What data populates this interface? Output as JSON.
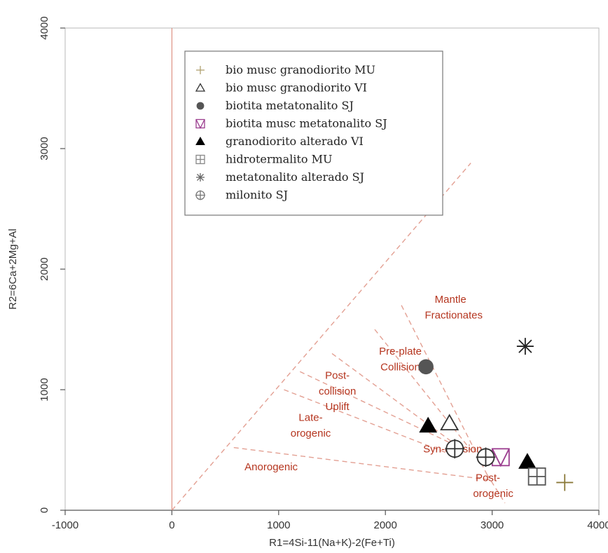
{
  "chart_data": {
    "type": "scatter",
    "title": "",
    "xlabel": "R1=4Si-11(Na+K)-2(Fe+Ti)",
    "ylabel": "R2=6Ca+2Mg+Al",
    "xlim": [
      -1000,
      4000
    ],
    "ylim": [
      0,
      4000
    ],
    "x_ticks": [
      "-1000",
      "0",
      "1000",
      "2000",
      "3000",
      "4000"
    ],
    "y_ticks": [
      "0",
      "1000",
      "2000",
      "3000",
      "4000"
    ],
    "legend_position": "top-left",
    "series": [
      {
        "name": "bio musc granodiorito MU",
        "marker": "plus",
        "color": "#8b7a3a",
        "points": [
          [
            3680,
            230
          ]
        ]
      },
      {
        "name": "bio musc granodiorito VI",
        "marker": "triangle-open",
        "color": "#333333",
        "points": [
          [
            2600,
            720
          ]
        ]
      },
      {
        "name": "biotita metatonalito SJ",
        "marker": "circle-filled",
        "color": "#555555",
        "points": [
          [
            2380,
            1190
          ]
        ]
      },
      {
        "name": "biotita musc metatonalito SJ",
        "marker": "square-v",
        "color": "#9b3d8f",
        "points": [
          [
            3080,
            440
          ]
        ]
      },
      {
        "name": "granodiorito alterado VI",
        "marker": "triangle-filled",
        "color": "#000000",
        "points": [
          [
            2400,
            700
          ],
          [
            3330,
            400
          ]
        ]
      },
      {
        "name": "hidrotermalito MU",
        "marker": "square-plus",
        "color": "#555555",
        "points": [
          [
            3420,
            280
          ]
        ]
      },
      {
        "name": "metatonalito alterado SJ",
        "marker": "asterisk",
        "color": "#222222",
        "points": [
          [
            3310,
            1360
          ]
        ]
      },
      {
        "name": "milonito SJ",
        "marker": "circle-plus",
        "color": "#333333",
        "points": [
          [
            2940,
            440
          ],
          [
            2650,
            510
          ]
        ]
      }
    ],
    "field_lines": [
      [
        [
          0,
          0
        ],
        [
          2800,
          2880
        ]
      ],
      [
        [
          0,
          0
        ],
        [
          1400,
          1440
        ]
      ],
      [
        [
          1000,
          1000
        ],
        [
          2000,
          1000
        ]
      ]
    ],
    "field_labels": [
      {
        "text": "Mantle",
        "x": 2610,
        "y": 1720
      },
      {
        "text": "Fractionates",
        "x": 2640,
        "y": 1590
      },
      {
        "text": "Pre-plate",
        "x": 2140,
        "y": 1290
      },
      {
        "text": "Collision",
        "x": 2140,
        "y": 1160
      },
      {
        "text": "Post-",
        "x": 1550,
        "y": 1090
      },
      {
        "text": "collision",
        "x": 1550,
        "y": 960
      },
      {
        "text": "Uplift",
        "x": 1550,
        "y": 830
      },
      {
        "text": "Late-",
        "x": 1300,
        "y": 740
      },
      {
        "text": "orogenic",
        "x": 1300,
        "y": 610
      },
      {
        "text": "Syn-collision",
        "x": 2630,
        "y": 480
      },
      {
        "text": "Anorogenic",
        "x": 930,
        "y": 330
      },
      {
        "text": "Post-",
        "x": 2960,
        "y": 240
      },
      {
        "text": "orogenic",
        "x": 3010,
        "y": 110
      }
    ]
  }
}
